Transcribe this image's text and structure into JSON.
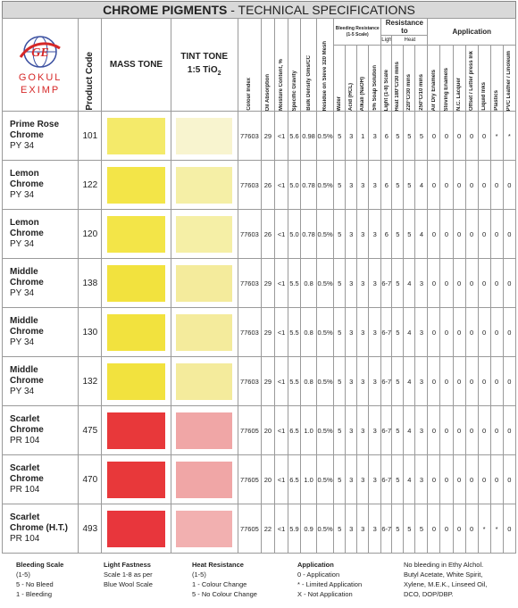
{
  "header": {
    "title_bold": "CHROME PIGMENTS",
    "title_rest": " - TECHNICAL SPECIFICATIONS",
    "logo_top": "GOKUL",
    "logo_bottom": "EXIMP"
  },
  "table": {
    "columns": {
      "product_code": "Product Code",
      "mass_tone": "MASS TONE",
      "tint_tone": "TINT TONE",
      "tint_ratio": "1:5 TiO",
      "tint_sub": "2"
    },
    "groups": {
      "bleeding": "Bleeding Resistance",
      "bleeding_scale": "(1-5 Scale)",
      "resistance": "Resistance to",
      "light": "Light",
      "heat": "Heat",
      "application": "Application"
    },
    "properties": [
      "Colour Index",
      "Oil Absorption",
      "Moisture Content, %",
      "Specific Gravity",
      "Bulk Density Gms/CC",
      "Residue on Sieve 320 Mesh",
      "Water",
      "Acid (HCL)",
      "Alkali (NaOH)",
      "5% Soap Solution",
      "Light (1-8) Scale",
      "Heat 180°C/30 mins",
      "220°C/30 mins",
      "250°C/10 mins",
      "Air Dry Enamels",
      "Stoving Enamels",
      "N.C. Lacquer",
      "Offset / Letter press Ink",
      "Liquid Inks",
      "Plastics",
      "PVC Leather / Linoleum"
    ],
    "rows": [
      {
        "name_lines": [
          "Prime Rose",
          "Chrome"
        ],
        "pigment": "PY 34",
        "code": "101",
        "mass_color": "#f4ea6a",
        "tint_color": "#f8f4cf",
        "values": [
          "77603",
          "29",
          "<1",
          "5.6",
          "0.98",
          "0.5%",
          "5",
          "3",
          "1",
          "3",
          "6",
          "5",
          "5",
          "5",
          "0",
          "0",
          "0",
          "0",
          "0",
          "*",
          "*"
        ]
      },
      {
        "name_lines": [
          "Lemon",
          "Chrome"
        ],
        "pigment": "PY 34",
        "code": "122",
        "mass_color": "#f3e548",
        "tint_color": "#f5efa6",
        "values": [
          "77603",
          "26",
          "<1",
          "5.0",
          "0.78",
          "0.5%",
          "5",
          "3",
          "3",
          "3",
          "6",
          "5",
          "5",
          "4",
          "0",
          "0",
          "0",
          "0",
          "0",
          "0",
          "0"
        ]
      },
      {
        "name_lines": [
          "Lemon",
          "Chrome"
        ],
        "pigment": "PY 34",
        "code": "120",
        "mass_color": "#f3e548",
        "tint_color": "#f5efa6",
        "values": [
          "77603",
          "26",
          "<1",
          "5.0",
          "0.78",
          "0.5%",
          "5",
          "3",
          "3",
          "3",
          "6",
          "5",
          "5",
          "4",
          "0",
          "0",
          "0",
          "0",
          "0",
          "0",
          "0"
        ]
      },
      {
        "name_lines": [
          "Middle",
          "Chrome"
        ],
        "pigment": "PY 34",
        "code": "138",
        "mass_color": "#f2e23e",
        "tint_color": "#f4eb9c",
        "values": [
          "77603",
          "29",
          "<1",
          "5.5",
          "0.8",
          "0.5%",
          "5",
          "3",
          "3",
          "3",
          "6-7",
          "5",
          "4",
          "3",
          "0",
          "0",
          "0",
          "0",
          "0",
          "0",
          "0"
        ]
      },
      {
        "name_lines": [
          "Middle",
          "Chrome"
        ],
        "pigment": "PY 34",
        "code": "130",
        "mass_color": "#f2e23e",
        "tint_color": "#f4eb9c",
        "values": [
          "77603",
          "29",
          "<1",
          "5.5",
          "0.8",
          "0.5%",
          "5",
          "3",
          "3",
          "3",
          "6-7",
          "5",
          "4",
          "3",
          "0",
          "0",
          "0",
          "0",
          "0",
          "0",
          "0"
        ]
      },
      {
        "name_lines": [
          "Middle",
          "Chrome"
        ],
        "pigment": "PY 34",
        "code": "132",
        "mass_color": "#f2e23e",
        "tint_color": "#f4eb9c",
        "values": [
          "77603",
          "29",
          "<1",
          "5.5",
          "0.8",
          "0.5%",
          "5",
          "3",
          "3",
          "3",
          "6-7",
          "5",
          "4",
          "3",
          "0",
          "0",
          "0",
          "0",
          "0",
          "0",
          "0"
        ]
      },
      {
        "name_lines": [
          "Scarlet",
          "Chrome"
        ],
        "pigment": "PR 104",
        "code": "475",
        "mass_color": "#e8383a",
        "tint_color": "#f0a6a6",
        "values": [
          "77605",
          "20",
          "<1",
          "6.5",
          "1.0",
          "0.5%",
          "5",
          "3",
          "3",
          "3",
          "6-7",
          "5",
          "4",
          "3",
          "0",
          "0",
          "0",
          "0",
          "0",
          "0",
          "0"
        ]
      },
      {
        "name_lines": [
          "Scarlet",
          "Chrome"
        ],
        "pigment": "PR 104",
        "code": "470",
        "mass_color": "#e8383a",
        "tint_color": "#f0a6a6",
        "values": [
          "77605",
          "20",
          "<1",
          "6.5",
          "1.0",
          "0.5%",
          "5",
          "3",
          "3",
          "3",
          "6-7",
          "5",
          "4",
          "3",
          "0",
          "0",
          "0",
          "0",
          "0",
          "0",
          "0"
        ]
      },
      {
        "name_lines": [
          "Scarlet",
          "Chrome (H.T.)"
        ],
        "pigment": "PR 104",
        "code": "493",
        "mass_color": "#e8363c",
        "tint_color": "#f2b0b0",
        "values": [
          "77605",
          "22",
          "<1",
          "5.9",
          "0.9",
          "0.5%",
          "5",
          "3",
          "3",
          "3",
          "6-7",
          "5",
          "5",
          "5",
          "0",
          "0",
          "0",
          "0",
          "*",
          "*",
          "0"
        ]
      }
    ]
  },
  "legend": [
    {
      "lines": [
        "Bleeding Scale",
        "(1-5)",
        "5 - No Bleed",
        "1 - Bleeding"
      ]
    },
    {
      "lines": [
        "Light Fastness",
        "Scale 1-8 as per",
        "Blue Wool Scale"
      ]
    },
    {
      "lines": [
        "Heat Resistance",
        "(1-5)",
        "1 - Colour Change",
        "5 - No Colour Change"
      ]
    },
    {
      "lines": [
        "Application",
        "0 - Application",
        "* - Limited Application",
        "X - Not Application"
      ]
    },
    {
      "lines": [
        "No bleeding in Ethy Alchol.",
        "Butyl Acetate, White Spirit,",
        "Xylene, M.E.K., Linseed Oil,",
        "DCO, DOP/DBP."
      ]
    }
  ]
}
